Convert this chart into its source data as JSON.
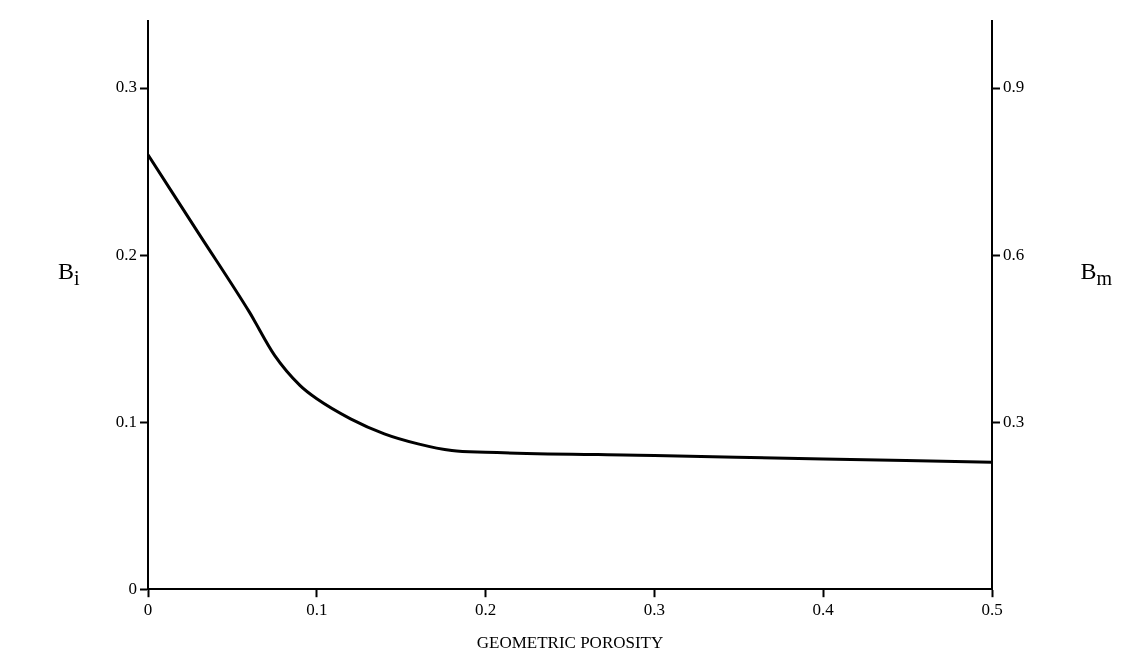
{
  "chart_data": {
    "type": "line",
    "xlabel": "GEOMETRIC POROSITY",
    "ylabel": "B$_{i}$",
    "y2label": "B$_{m}$",
    "x": [
      0,
      0.03,
      0.06,
      0.075,
      0.09,
      0.1,
      0.12,
      0.14,
      0.16,
      0.18,
      0.2,
      0.3,
      0.4,
      0.5
    ],
    "series": [
      {
        "color": "#000000",
        "values": [
          0.26,
          0.213,
          0.166,
          0.14,
          0.122,
          0.114,
          0.102,
          0.093,
          0.087,
          0.083,
          0.082,
          0.08,
          0.078,
          0.076
        ]
      }
    ],
    "xlim": [
      0,
      0.5
    ],
    "xticks": [
      0,
      0.1,
      0.2,
      0.3,
      0.4,
      0.5
    ],
    "ylim": [
      0,
      0.34
    ],
    "yticks": [
      0,
      0.1,
      0.2,
      0.3
    ],
    "y2lim": [
      0,
      1.02
    ],
    "y2ticks": [
      0.3,
      0.6,
      0.9
    ],
    "grid": false,
    "legend": false,
    "marker": "none",
    "line_style": "solid"
  }
}
